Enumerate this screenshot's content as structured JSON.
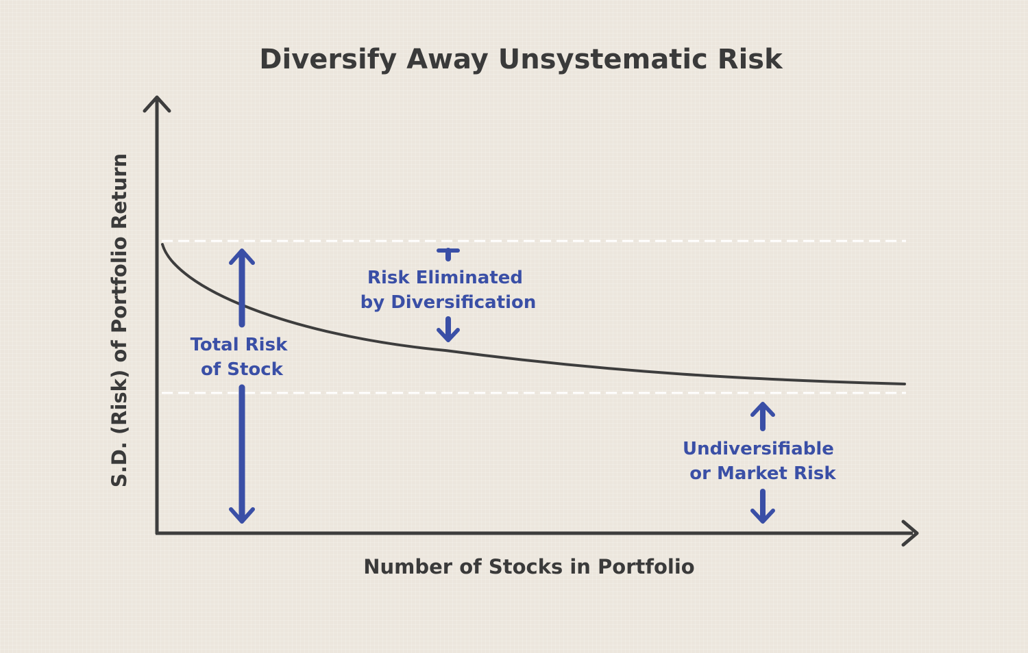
{
  "title": "Diversify Away Unsystematic Risk",
  "axes": {
    "x_label": "Number of Stocks in Portfolio",
    "y_label": "S.D. (Risk) of Portfolio Return"
  },
  "annotations": {
    "total_risk": [
      "Total Risk",
      "of Stock"
    ],
    "risk_eliminated": [
      "Risk Eliminated",
      "by Diversification"
    ],
    "market_risk": [
      "Undiversifiable",
      "or Market Risk"
    ]
  },
  "colors": {
    "background": "#ece6dd",
    "axis": "#3d3d3d",
    "curve": "#3d3d3d",
    "accent": "#3a4fa6",
    "dashed_line": "#ffffff",
    "title": "#3a3a3a"
  }
}
